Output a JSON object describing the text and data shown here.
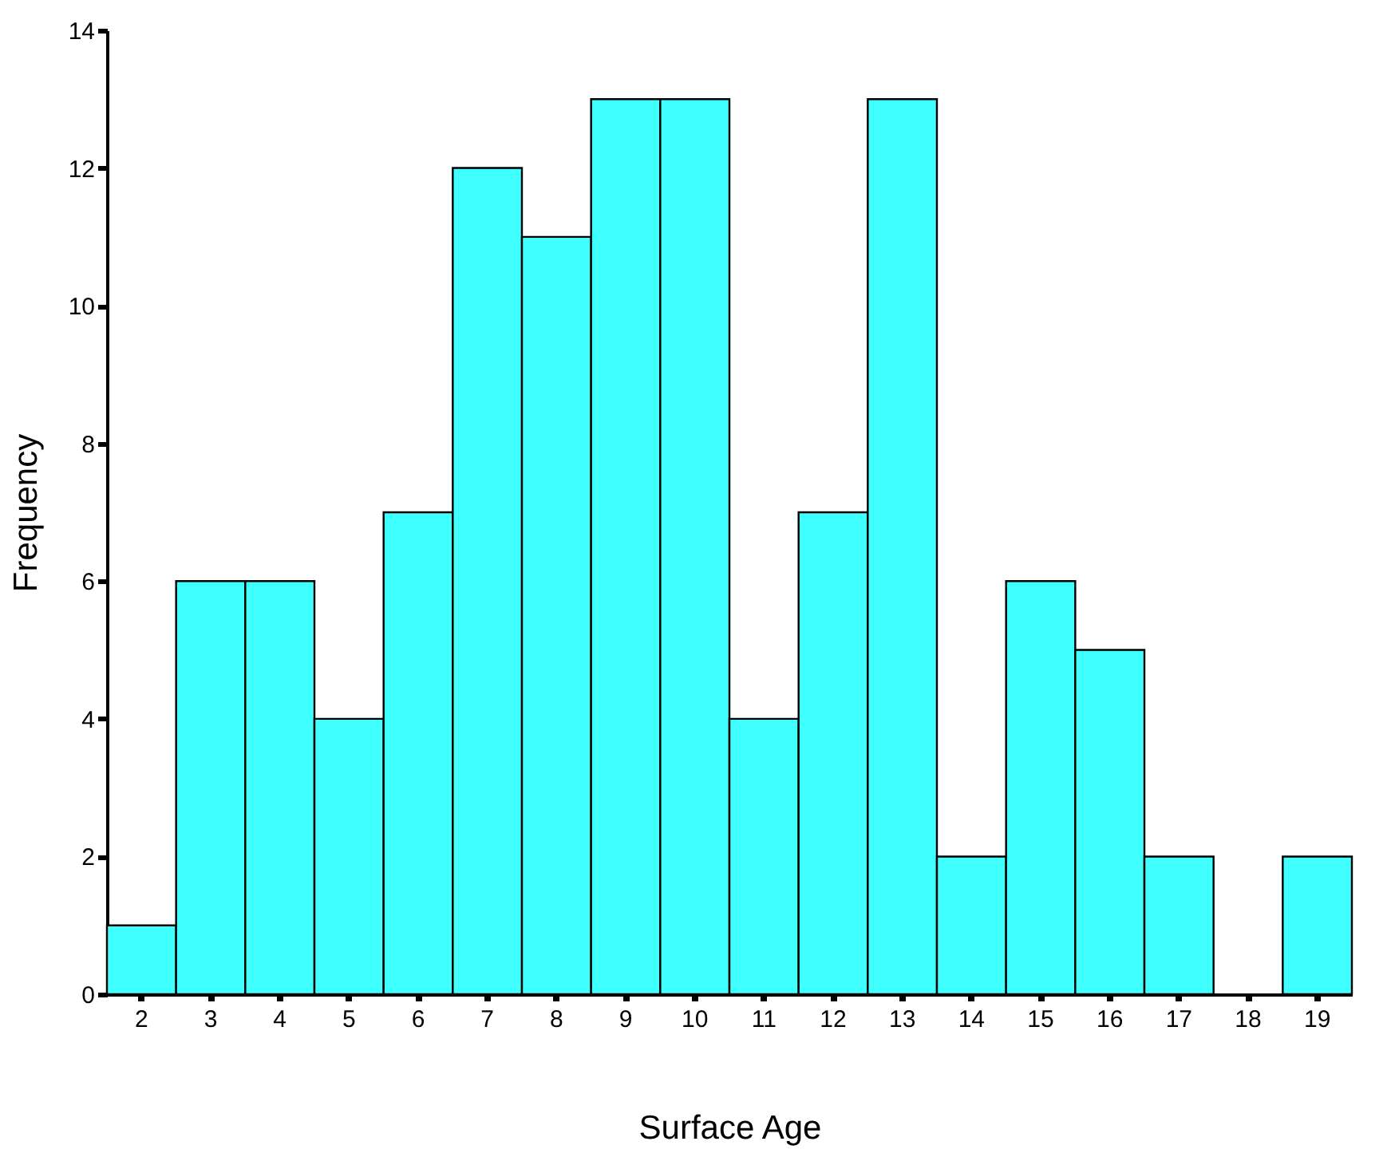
{
  "chart_data": {
    "type": "bar",
    "xlabel": "Surface Age",
    "ylabel": "Frequency",
    "categories": [
      "2",
      "3",
      "4",
      "5",
      "6",
      "7",
      "8",
      "9",
      "10",
      "11",
      "12",
      "13",
      "14",
      "15",
      "16",
      "17",
      "18",
      "19"
    ],
    "values": [
      1,
      6,
      6,
      4,
      7,
      12,
      11,
      13,
      13,
      4,
      7,
      13,
      2,
      6,
      5,
      2,
      0,
      2
    ],
    "color": "#40ffff",
    "ylim": [
      0,
      14
    ],
    "yticks": [
      0,
      2,
      4,
      6,
      8,
      10,
      12,
      14
    ],
    "grid": false
  }
}
